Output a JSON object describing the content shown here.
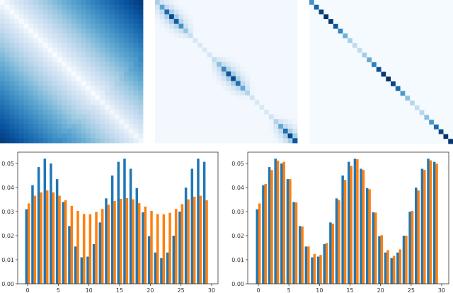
{
  "chart_data": [
    {
      "type": "heatmap",
      "colormap": "Blues",
      "size": 30,
      "pattern": "distance from diagonal (white diagonal, dark corners)"
    },
    {
      "type": "heatmap",
      "colormap": "Blues",
      "size": 30,
      "pattern": "local band along diagonal"
    },
    {
      "type": "heatmap",
      "colormap": "Blues",
      "size": 30,
      "pattern": "diagonal only",
      "diagonal": [
        0.031,
        0.041,
        0.0485,
        0.052,
        0.05,
        0.0435,
        0.034,
        0.024,
        0.0155,
        0.011,
        0.0113,
        0.0165,
        0.0255,
        0.0355,
        0.045,
        0.0507,
        0.052,
        0.0478,
        0.0398,
        0.0297,
        0.0198,
        0.013,
        0.0107,
        0.013,
        0.02,
        0.03,
        0.04,
        0.0478,
        0.052,
        0.0507
      ]
    },
    {
      "type": "bar",
      "x": [
        0,
        1,
        2,
        3,
        4,
        5,
        6,
        7,
        8,
        9,
        10,
        11,
        12,
        13,
        14,
        15,
        16,
        17,
        18,
        19,
        20,
        21,
        22,
        23,
        24,
        25,
        26,
        27,
        28,
        29
      ],
      "xlim": [
        -2,
        31
      ],
      "ylim": [
        0,
        0.055
      ],
      "xticks": [
        "0",
        "5",
        "10",
        "15",
        "20",
        "25",
        "30"
      ],
      "yticks": [
        "0.00",
        "0.01",
        "0.02",
        "0.03",
        "0.04",
        "0.05"
      ],
      "series": [
        {
          "color": "#1f77b4",
          "values": [
            0.031,
            0.041,
            0.0485,
            0.052,
            0.05,
            0.0435,
            0.034,
            0.024,
            0.0155,
            0.011,
            0.0113,
            0.0165,
            0.0255,
            0.0355,
            0.045,
            0.0507,
            0.052,
            0.0478,
            0.0398,
            0.0297,
            0.0198,
            0.013,
            0.0107,
            0.013,
            0.02,
            0.03,
            0.04,
            0.0478,
            0.052,
            0.0507
          ]
        },
        {
          "color": "#ff7f0e",
          "values": [
            0.0334,
            0.0366,
            0.038,
            0.0388,
            0.038,
            0.0366,
            0.0347,
            0.0324,
            0.0303,
            0.029,
            0.0289,
            0.0299,
            0.0311,
            0.0329,
            0.0344,
            0.0353,
            0.0356,
            0.0351,
            0.0335,
            0.0321,
            0.0303,
            0.029,
            0.0289,
            0.0295,
            0.0311,
            0.0331,
            0.0351,
            0.0362,
            0.0366,
            0.0347
          ]
        }
      ]
    },
    {
      "type": "bar",
      "x": [
        0,
        1,
        2,
        3,
        4,
        5,
        6,
        7,
        8,
        9,
        10,
        11,
        12,
        13,
        14,
        15,
        16,
        17,
        18,
        19,
        20,
        21,
        22,
        23,
        24,
        25,
        26,
        27,
        28,
        29
      ],
      "xlim": [
        -2,
        31
      ],
      "ylim": [
        0,
        0.055
      ],
      "xticks": [
        "0",
        "5",
        "10",
        "15",
        "20",
        "25",
        "30"
      ],
      "yticks": [
        "0.00",
        "0.01",
        "0.02",
        "0.03",
        "0.04",
        "0.05"
      ],
      "series": [
        {
          "color": "#1f77b4",
          "values": [
            0.031,
            0.041,
            0.0485,
            0.052,
            0.05,
            0.0435,
            0.034,
            0.024,
            0.0155,
            0.011,
            0.0113,
            0.0165,
            0.0255,
            0.0355,
            0.045,
            0.0507,
            0.052,
            0.0478,
            0.0398,
            0.0297,
            0.0198,
            0.013,
            0.0107,
            0.013,
            0.02,
            0.03,
            0.04,
            0.0478,
            0.052,
            0.0507
          ]
        },
        {
          "color": "#ff7f0e",
          "values": [
            0.0334,
            0.0415,
            0.0473,
            0.0512,
            0.0507,
            0.0435,
            0.0338,
            0.0238,
            0.0155,
            0.0124,
            0.012,
            0.017,
            0.025,
            0.0348,
            0.0432,
            0.049,
            0.0518,
            0.0473,
            0.0393,
            0.0296,
            0.0202,
            0.014,
            0.0116,
            0.0143,
            0.02,
            0.0303,
            0.0388,
            0.0473,
            0.0513,
            0.0499
          ]
        }
      ]
    }
  ]
}
